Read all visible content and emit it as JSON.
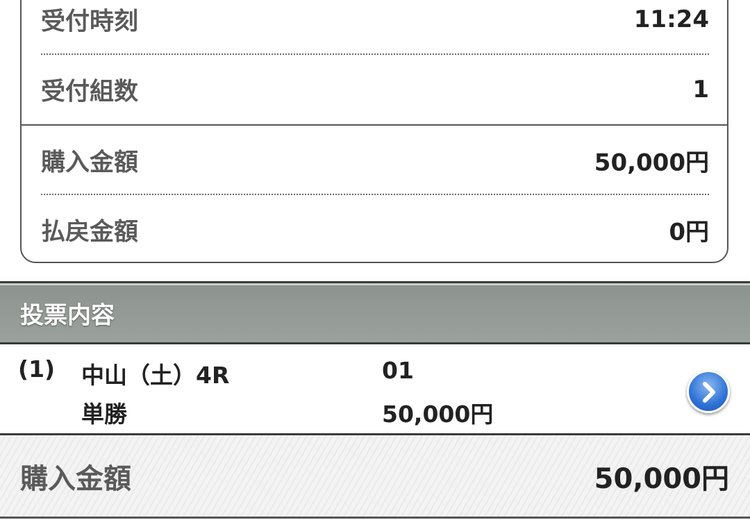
{
  "summary": {
    "rows": [
      {
        "label": "受付時刻",
        "value": "11:24"
      },
      {
        "label": "受付組数",
        "value": "1"
      },
      {
        "label": "購入金額",
        "value": "50,000円"
      },
      {
        "label": "払戻金額",
        "value": "0円"
      }
    ]
  },
  "section": {
    "title": "投票内容"
  },
  "bets": [
    {
      "index": "(1)",
      "race": "中山（土）4R",
      "type": "単勝",
      "selection": "01",
      "amount": "50,000円",
      "detail_icon": "chevron-right-icon"
    }
  ],
  "footer": {
    "label": "購入金額",
    "value": "50,000円"
  },
  "colors": {
    "section_bar": "#9ba29d",
    "detail_button": "#2f72d6"
  }
}
